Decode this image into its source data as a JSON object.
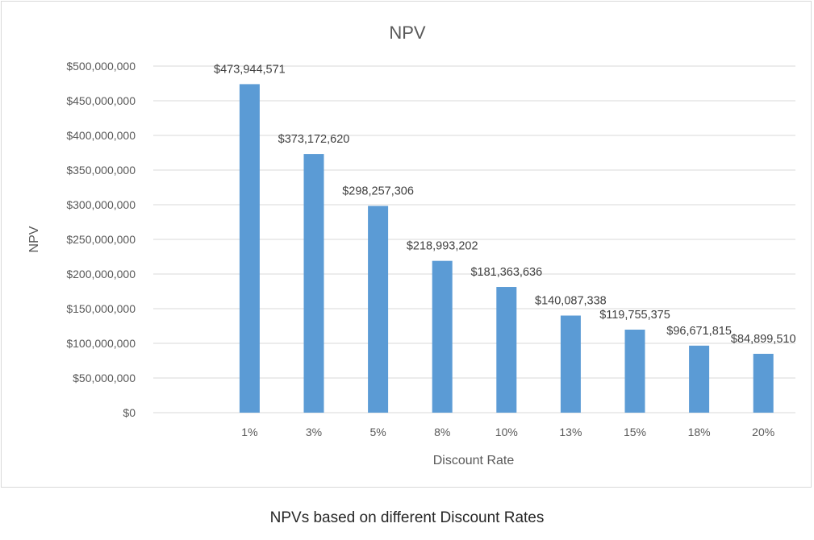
{
  "caption": "NPVs based on different Discount Rates",
  "colors": {
    "bar": "#5b9bd5",
    "grid": "#d9d9d9",
    "text": "#595959"
  },
  "chart_data": {
    "type": "bar",
    "title": "NPV",
    "xlabel": "Discount Rate",
    "ylabel": "NPV",
    "categories": [
      "",
      "1%",
      "3%",
      "5%",
      "8%",
      "10%",
      "13%",
      "15%",
      "18%",
      "20%"
    ],
    "values": [
      null,
      473944571,
      373172620,
      298257306,
      218993202,
      181363636,
      140087338,
      119755375,
      96671815,
      84899510
    ],
    "data_labels": [
      "",
      "$473,944,571",
      "$373,172,620",
      "$298,257,306",
      "$218,993,202",
      "$181,363,636",
      "$140,087,338",
      "$119,755,375",
      "$96,671,815",
      "$84,899,510"
    ],
    "ylim": [
      0,
      500000000
    ],
    "yticks": [
      0,
      50000000,
      100000000,
      150000000,
      200000000,
      250000000,
      300000000,
      350000000,
      400000000,
      450000000,
      500000000
    ],
    "ytick_labels": [
      "$0",
      "$50,000,000",
      "$100,000,000",
      "$150,000,000",
      "$200,000,000",
      "$250,000,000",
      "$300,000,000",
      "$350,000,000",
      "$400,000,000",
      "$450,000,000",
      "$500,000,000"
    ],
    "grid": true,
    "legend": "none"
  }
}
